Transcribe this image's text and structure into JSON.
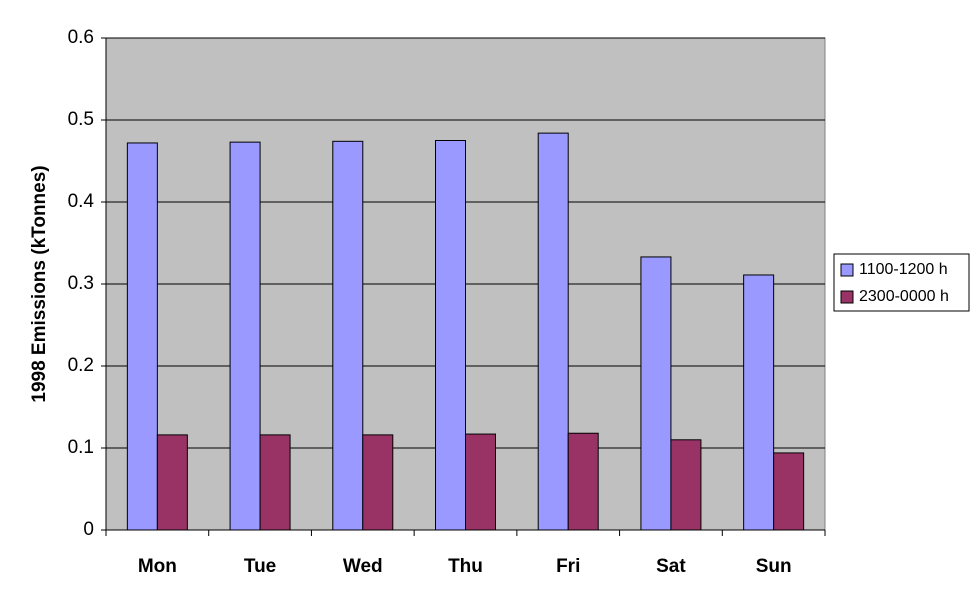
{
  "chart_data": {
    "type": "bar",
    "title": "",
    "xlabel": "",
    "ylabel": "1998 Emissions (kTonnes)",
    "categories": [
      "Mon",
      "Tue",
      "Wed",
      "Thu",
      "Fri",
      "Sat",
      "Sun"
    ],
    "series": [
      {
        "name": "1100-1200 h",
        "color": "#9999ff",
        "values": [
          0.472,
          0.473,
          0.474,
          0.475,
          0.484,
          0.333,
          0.311
        ]
      },
      {
        "name": "2300-0000 h",
        "color": "#993366",
        "values": [
          0.116,
          0.116,
          0.116,
          0.117,
          0.118,
          0.11,
          0.094
        ]
      }
    ],
    "ylim": [
      0,
      0.6
    ],
    "yticks": [
      "0",
      "0.1",
      "0.2",
      "0.3",
      "0.4",
      "0.5",
      "0.6"
    ],
    "grid": true,
    "plot_background": "#c0c0c0",
    "legend_position": "right"
  }
}
